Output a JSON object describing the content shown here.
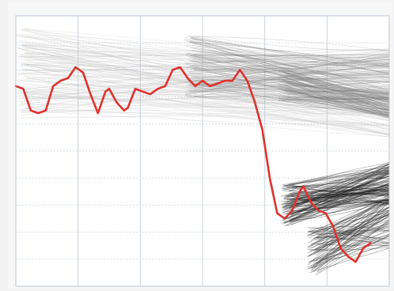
{
  "chart_data": {
    "type": "line",
    "title": "",
    "xlabel": "",
    "ylabel": "",
    "grid": true,
    "legend": "none",
    "xlim": [
      0,
      100
    ],
    "ylim": [
      0,
      100
    ],
    "colors": {
      "highlight": "#e0322d",
      "grid": "#c9d3dd",
      "plot_background": "#ffffff",
      "spaghetti_light": "#bfbfbf",
      "spaghetti_mid": "#7a7a7a",
      "spaghetti_dark": "#1e1e1e"
    },
    "background_bundles": [
      {
        "name": "",
        "count": 140,
        "x_start": 0,
        "x_end": 100,
        "y_start_range": [
          62,
          96
        ],
        "y_end_range": [
          55,
          88
        ],
        "tone": "light"
      },
      {
        "name": "",
        "count": 120,
        "x_start": 45,
        "x_end": 100,
        "y_start_range": [
          70,
          93
        ],
        "y_end_range": [
          62,
          88
        ],
        "tone": "mid"
      },
      {
        "name": "",
        "count": 90,
        "x_start": 70,
        "x_end": 100,
        "y_start_range": [
          68,
          80
        ],
        "y_end_range": [
          62,
          72
        ],
        "tone": "mid"
      },
      {
        "name": "",
        "count": 130,
        "x_start": 71,
        "x_end": 100,
        "y_start_range": [
          22,
          38
        ],
        "y_end_range": [
          30,
          46
        ],
        "tone": "dark"
      },
      {
        "name": "",
        "count": 80,
        "x_start": 78,
        "x_end": 100,
        "y_start_range": [
          4,
          22
        ],
        "y_end_range": [
          14,
          34
        ],
        "tone": "dark"
      }
    ],
    "series": [
      {
        "x": [
          0,
          2,
          4,
          6,
          8,
          10,
          12,
          14,
          16,
          18,
          20,
          22,
          24,
          25,
          27,
          29,
          30,
          32,
          34,
          36,
          38,
          40,
          42,
          44,
          46,
          48,
          50,
          52,
          54,
          56,
          58,
          60,
          62,
          64,
          66,
          68,
          70,
          72,
          74,
          76,
          77,
          79,
          81,
          83,
          85,
          87,
          89,
          91,
          93,
          95
        ],
        "values": [
          74,
          73,
          65,
          64,
          65,
          74,
          76,
          77,
          81,
          79,
          71,
          64,
          72,
          73,
          68,
          65,
          66,
          73,
          72,
          71,
          73,
          74,
          80,
          81,
          77,
          74,
          76,
          74,
          75,
          76,
          76,
          80,
          76,
          68,
          58,
          40,
          27,
          25,
          28,
          35,
          37,
          31,
          28,
          27,
          22,
          14,
          11,
          9,
          14,
          16
        ]
      }
    ]
  }
}
